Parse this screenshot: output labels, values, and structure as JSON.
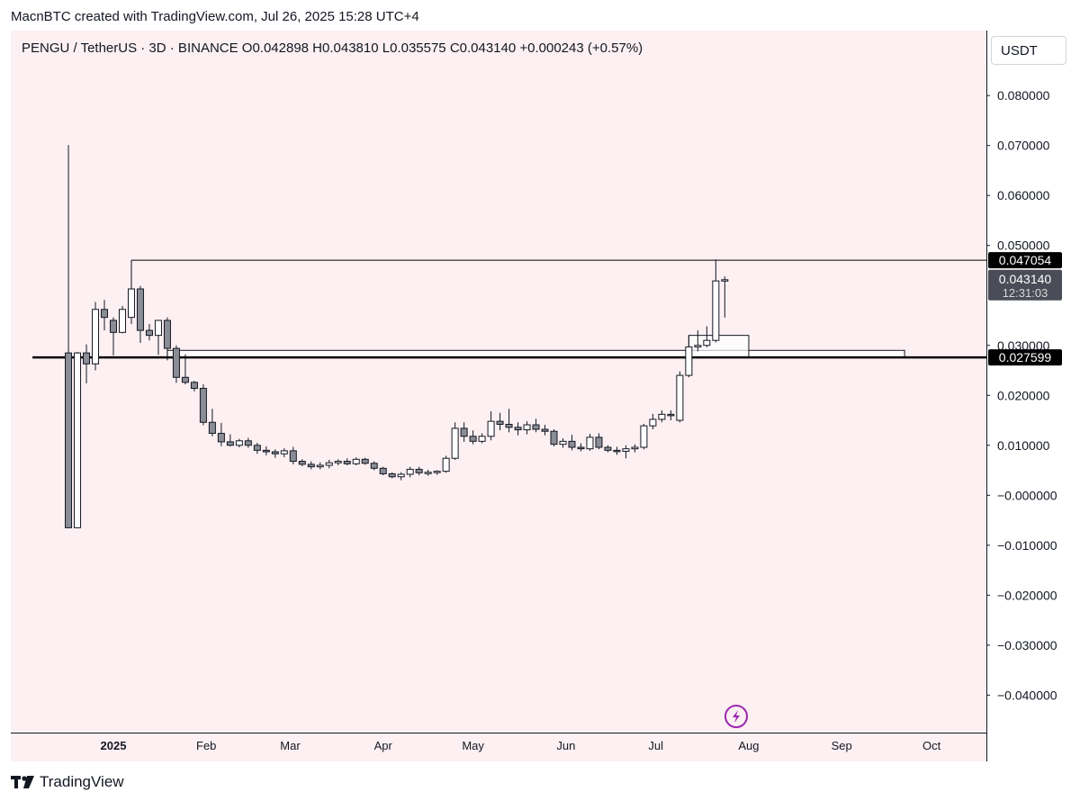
{
  "header": {
    "created_by": "MacnBTC created with TradingView.com, Jul 26, 2025 15:28 UTC+4"
  },
  "symbol_info": {
    "text": "PENGU / TetherUS · 3D · BINANCE  O0.042898  H0.043810  L0.035575  C0.043140  +0.000243 (+0.57%)"
  },
  "currency_button": {
    "label": "USDT"
  },
  "footer": {
    "brand": "TradingView"
  },
  "colors": {
    "background": "#fcf0f2",
    "up_candle": "#ffffff",
    "down_candle": "#8a8d96",
    "candle_outline": "#131722",
    "level_line": "#000000"
  },
  "chart_data": {
    "type": "candlestick",
    "symbol": "PENGU / TetherUS",
    "interval": "3D",
    "exchange": "BINANCE",
    "ohlc_summary": {
      "open": 0.042898,
      "high": 0.04381,
      "low": 0.035575,
      "close": 0.04314,
      "change": 0.000243,
      "change_pct": 0.57
    },
    "x_ticks": [
      "2025",
      "Feb",
      "Mar",
      "Apr",
      "May",
      "Jun",
      "Jul",
      "Aug",
      "Sep",
      "Oct"
    ],
    "y_ticks": [
      "0.080000",
      "0.070000",
      "0.060000",
      "0.050000",
      "0.030000",
      "0.020000",
      "0.010000",
      "−0.000000",
      "−0.010000",
      "−0.020000",
      "−0.030000",
      "−0.040000"
    ],
    "y_tick_values": [
      0.08,
      0.07,
      0.06,
      0.05,
      0.03,
      0.02,
      0.01,
      0.0,
      -0.01,
      -0.02,
      -0.03,
      -0.04
    ],
    "ylim": [
      -0.0475,
      0.093
    ],
    "x_tick_dates": [
      "2025-01-01",
      "2025-02-01",
      "2025-03-01",
      "2025-04-01",
      "2025-05-01",
      "2025-06-01",
      "2025-07-01",
      "2025-08-01",
      "2025-09-01",
      "2025-10-01"
    ],
    "candles": [
      {
        "date": "2024-12-17",
        "open": 0.02849,
        "high": 0.0701,
        "low": -0.0065,
        "close": -0.0065
      },
      {
        "date": "2024-12-20",
        "open": -0.0065,
        "high": 0.0287,
        "low": -0.0065,
        "close": 0.02849
      },
      {
        "date": "2024-12-23",
        "open": 0.02849,
        "high": 0.0302,
        "low": 0.0224,
        "close": 0.0263
      },
      {
        "date": "2024-12-26",
        "open": 0.0263,
        "high": 0.0387,
        "low": 0.025,
        "close": 0.0372
      },
      {
        "date": "2024-12-29",
        "open": 0.0372,
        "high": 0.0391,
        "low": 0.033,
        "close": 0.0356
      },
      {
        "date": "2025-01-01",
        "open": 0.035,
        "high": 0.0356,
        "low": 0.028,
        "close": 0.0326
      },
      {
        "date": "2025-01-04",
        "open": 0.0326,
        "high": 0.0379,
        "low": 0.0324,
        "close": 0.0372
      },
      {
        "date": "2025-01-07",
        "open": 0.0356,
        "high": 0.047,
        "low": 0.0343,
        "close": 0.0413
      },
      {
        "date": "2025-01-10",
        "open": 0.0413,
        "high": 0.0419,
        "low": 0.0305,
        "close": 0.033
      },
      {
        "date": "2025-01-13",
        "open": 0.033,
        "high": 0.0343,
        "low": 0.031,
        "close": 0.032
      },
      {
        "date": "2025-01-16",
        "open": 0.032,
        "high": 0.0349,
        "low": 0.0281,
        "close": 0.035
      },
      {
        "date": "2025-01-19",
        "open": 0.035,
        "high": 0.0356,
        "low": 0.027,
        "close": 0.0294
      },
      {
        "date": "2025-01-22",
        "open": 0.0294,
        "high": 0.03,
        "low": 0.0225,
        "close": 0.0236
      },
      {
        "date": "2025-01-25",
        "open": 0.0236,
        "high": 0.0282,
        "low": 0.0222,
        "close": 0.0226
      },
      {
        "date": "2025-01-28",
        "open": 0.0226,
        "high": 0.0229,
        "low": 0.0208,
        "close": 0.0214
      },
      {
        "date": "2025-01-31",
        "open": 0.0214,
        "high": 0.0222,
        "low": 0.014,
        "close": 0.0146
      },
      {
        "date": "2025-02-03",
        "open": 0.0146,
        "high": 0.0173,
        "low": 0.0118,
        "close": 0.0124
      },
      {
        "date": "2025-02-06",
        "open": 0.0124,
        "high": 0.0145,
        "low": 0.0098,
        "close": 0.0107
      },
      {
        "date": "2025-02-09",
        "open": 0.0107,
        "high": 0.0122,
        "low": 0.0098,
        "close": 0.01
      },
      {
        "date": "2025-02-12",
        "open": 0.01,
        "high": 0.0113,
        "low": 0.0096,
        "close": 0.0109
      },
      {
        "date": "2025-02-15",
        "open": 0.0109,
        "high": 0.0115,
        "low": 0.0095,
        "close": 0.01
      },
      {
        "date": "2025-02-18",
        "open": 0.01,
        "high": 0.0105,
        "low": 0.0083,
        "close": 0.009
      },
      {
        "date": "2025-02-21",
        "open": 0.009,
        "high": 0.0098,
        "low": 0.008,
        "close": 0.0087
      },
      {
        "date": "2025-02-24",
        "open": 0.0087,
        "high": 0.0092,
        "low": 0.0075,
        "close": 0.0083
      },
      {
        "date": "2025-02-27",
        "open": 0.0083,
        "high": 0.0094,
        "low": 0.0076,
        "close": 0.0089
      },
      {
        "date": "2025-03-02",
        "open": 0.0089,
        "high": 0.0097,
        "low": 0.0062,
        "close": 0.0068
      },
      {
        "date": "2025-03-05",
        "open": 0.0068,
        "high": 0.0072,
        "low": 0.0058,
        "close": 0.0062
      },
      {
        "date": "2025-03-08",
        "open": 0.0062,
        "high": 0.0068,
        "low": 0.0052,
        "close": 0.0057
      },
      {
        "date": "2025-03-11",
        "open": 0.0057,
        "high": 0.0066,
        "low": 0.0052,
        "close": 0.006
      },
      {
        "date": "2025-03-14",
        "open": 0.006,
        "high": 0.0071,
        "low": 0.0054,
        "close": 0.0065
      },
      {
        "date": "2025-03-17",
        "open": 0.0065,
        "high": 0.0072,
        "low": 0.006,
        "close": 0.0068
      },
      {
        "date": "2025-03-20",
        "open": 0.0068,
        "high": 0.0074,
        "low": 0.006,
        "close": 0.0063
      },
      {
        "date": "2025-03-23",
        "open": 0.0063,
        "high": 0.0076,
        "low": 0.006,
        "close": 0.0072
      },
      {
        "date": "2025-03-26",
        "open": 0.0072,
        "high": 0.0075,
        "low": 0.0061,
        "close": 0.0064
      },
      {
        "date": "2025-03-29",
        "open": 0.0064,
        "high": 0.0068,
        "low": 0.005,
        "close": 0.0054
      },
      {
        "date": "2025-04-01",
        "open": 0.0054,
        "high": 0.0057,
        "low": 0.004,
        "close": 0.0043
      },
      {
        "date": "2025-04-04",
        "open": 0.0043,
        "high": 0.0046,
        "low": 0.0034,
        "close": 0.0037
      },
      {
        "date": "2025-04-07",
        "open": 0.0037,
        "high": 0.0046,
        "low": 0.003,
        "close": 0.0042
      },
      {
        "date": "2025-04-10",
        "open": 0.0042,
        "high": 0.0057,
        "low": 0.0036,
        "close": 0.0052
      },
      {
        "date": "2025-04-13",
        "open": 0.0052,
        "high": 0.0057,
        "low": 0.004,
        "close": 0.0045
      },
      {
        "date": "2025-04-16",
        "open": 0.0045,
        "high": 0.0051,
        "low": 0.0039,
        "close": 0.0046
      },
      {
        "date": "2025-04-19",
        "open": 0.0046,
        "high": 0.005,
        "low": 0.0041,
        "close": 0.0048
      },
      {
        "date": "2025-04-22",
        "open": 0.0048,
        "high": 0.0079,
        "low": 0.0045,
        "close": 0.0074
      },
      {
        "date": "2025-04-25",
        "open": 0.0074,
        "high": 0.0146,
        "low": 0.0071,
        "close": 0.0134
      },
      {
        "date": "2025-04-28",
        "open": 0.0134,
        "high": 0.0146,
        "low": 0.0107,
        "close": 0.0118
      },
      {
        "date": "2025-05-01",
        "open": 0.0118,
        "high": 0.013,
        "low": 0.0102,
        "close": 0.0108
      },
      {
        "date": "2025-05-04",
        "open": 0.0108,
        "high": 0.0124,
        "low": 0.0104,
        "close": 0.0118
      },
      {
        "date": "2025-05-07",
        "open": 0.0118,
        "high": 0.0168,
        "low": 0.011,
        "close": 0.0148
      },
      {
        "date": "2025-05-10",
        "open": 0.0148,
        "high": 0.0165,
        "low": 0.013,
        "close": 0.0142
      },
      {
        "date": "2025-05-13",
        "open": 0.0142,
        "high": 0.0173,
        "low": 0.0126,
        "close": 0.0136
      },
      {
        "date": "2025-05-16",
        "open": 0.0136,
        "high": 0.0146,
        "low": 0.012,
        "close": 0.0131
      },
      {
        "date": "2025-05-19",
        "open": 0.0131,
        "high": 0.0148,
        "low": 0.0122,
        "close": 0.0141
      },
      {
        "date": "2025-05-22",
        "open": 0.0141,
        "high": 0.0153,
        "low": 0.0126,
        "close": 0.0132
      },
      {
        "date": "2025-05-25",
        "open": 0.0132,
        "high": 0.0141,
        "low": 0.012,
        "close": 0.0128
      },
      {
        "date": "2025-05-28",
        "open": 0.0128,
        "high": 0.0132,
        "low": 0.0098,
        "close": 0.0102
      },
      {
        "date": "2025-05-31",
        "open": 0.0102,
        "high": 0.0114,
        "low": 0.0095,
        "close": 0.0108
      },
      {
        "date": "2025-06-03",
        "open": 0.0108,
        "high": 0.0121,
        "low": 0.009,
        "close": 0.0096
      },
      {
        "date": "2025-06-06",
        "open": 0.0096,
        "high": 0.0104,
        "low": 0.0088,
        "close": 0.0093
      },
      {
        "date": "2025-06-09",
        "open": 0.0093,
        "high": 0.0123,
        "low": 0.0089,
        "close": 0.0116
      },
      {
        "date": "2025-06-12",
        "open": 0.0116,
        "high": 0.0124,
        "low": 0.0092,
        "close": 0.0096
      },
      {
        "date": "2025-06-15",
        "open": 0.0096,
        "high": 0.01,
        "low": 0.0086,
        "close": 0.009
      },
      {
        "date": "2025-06-18",
        "open": 0.009,
        "high": 0.0097,
        "low": 0.0081,
        "close": 0.0088
      },
      {
        "date": "2025-06-21",
        "open": 0.0088,
        "high": 0.01,
        "low": 0.0074,
        "close": 0.0093
      },
      {
        "date": "2025-06-24",
        "open": 0.0093,
        "high": 0.0102,
        "low": 0.0086,
        "close": 0.0096
      },
      {
        "date": "2025-06-27",
        "open": 0.0096,
        "high": 0.0143,
        "low": 0.0092,
        "close": 0.0139
      },
      {
        "date": "2025-06-30",
        "open": 0.0139,
        "high": 0.0163,
        "low": 0.0132,
        "close": 0.0152
      },
      {
        "date": "2025-07-03",
        "open": 0.0152,
        "high": 0.017,
        "low": 0.0146,
        "close": 0.0162
      },
      {
        "date": "2025-07-06",
        "open": 0.0162,
        "high": 0.017,
        "low": 0.015,
        "close": 0.016
      },
      {
        "date": "2025-07-09",
        "open": 0.015,
        "high": 0.0248,
        "low": 0.0146,
        "close": 0.024
      },
      {
        "date": "2025-07-12",
        "open": 0.024,
        "high": 0.032,
        "low": 0.0236,
        "close": 0.0297
      },
      {
        "date": "2025-07-15",
        "open": 0.0297,
        "high": 0.033,
        "low": 0.0288,
        "close": 0.03
      },
      {
        "date": "2025-07-18",
        "open": 0.03,
        "high": 0.0338,
        "low": 0.0296,
        "close": 0.031
      },
      {
        "date": "2025-07-21",
        "open": 0.031,
        "high": 0.0472,
        "low": 0.0306,
        "close": 0.0429
      },
      {
        "date": "2025-07-24",
        "open": 0.042898,
        "high": 0.04381,
        "low": 0.035575,
        "close": 0.04314
      }
    ],
    "price_lines": [
      {
        "price": 0.047054,
        "label": "0.047054",
        "from": "2025-01-07",
        "style": "thin"
      },
      {
        "price": 0.027599,
        "label": "0.027599",
        "from": "2024-12-05",
        "style": "thick"
      }
    ],
    "zones": [
      {
        "from": "2025-01-19",
        "to": "2025-09-22",
        "top": 0.029,
        "bottom": 0.02765
      },
      {
        "from": "2025-07-12",
        "to": "2025-08-01",
        "top": 0.032,
        "bottom": 0.02765
      }
    ],
    "last_price": {
      "value": "0.043140",
      "countdown": "12:31:03"
    }
  }
}
